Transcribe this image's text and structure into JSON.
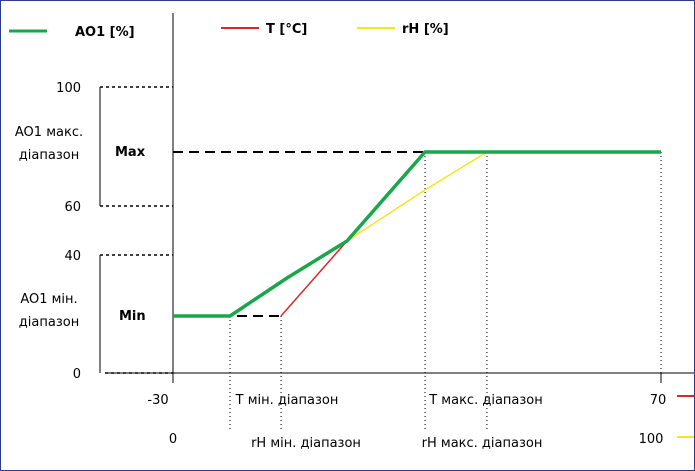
{
  "legend": {
    "ao1": {
      "label": "AO1 [%]",
      "color": "#1aa64a"
    },
    "t": {
      "label": "T [°C]",
      "color": "#d62a2a"
    },
    "rh": {
      "label": "rH [%]",
      "color": "#f2e61c"
    }
  },
  "y_axis": {
    "ticks": [
      "100",
      "60",
      "40",
      "0"
    ],
    "range_max": "AO1 макс.\nдіапазон",
    "range_max_line1": "AO1 макс.",
    "range_max_line2": "діапазон",
    "range_min_line1": "AO1 мін.",
    "range_min_line2": "діапазон",
    "max_label": "Max",
    "min_label": "Min"
  },
  "x_axis_t": {
    "start": "-30",
    "min_label": "T мін. діапазон",
    "max_label": "T макс. діапазон",
    "end": "70"
  },
  "x_axis_rh": {
    "start": "0",
    "min_label": "rH мін. діапазон",
    "max_label": "rH макс. діапазон",
    "end": "100"
  },
  "chart_data": {
    "type": "line",
    "series": [
      {
        "name": "AO1 [%]",
        "color": "#1aa64a"
      },
      {
        "name": "T [°C]",
        "color": "#d62a2a"
      },
      {
        "name": "rH [%]",
        "color": "#f2e61c"
      }
    ]
  }
}
